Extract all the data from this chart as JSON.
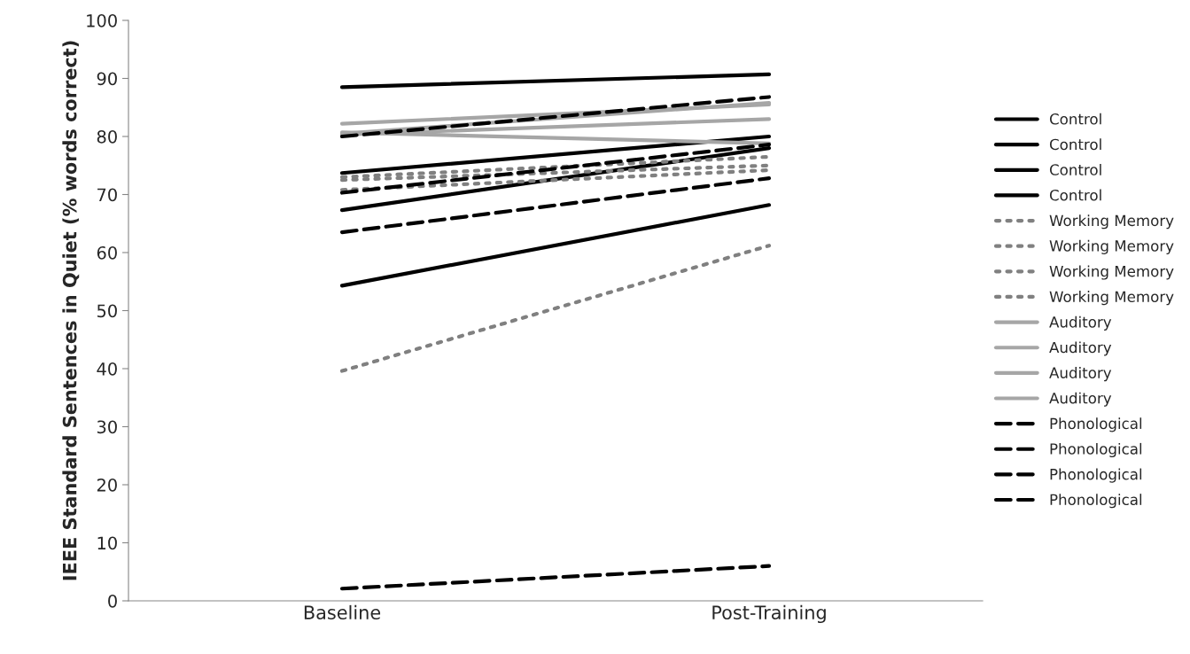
{
  "chart_data": {
    "type": "line",
    "ylabel": "IEEE Standard Sentences in Quiet (% words correct)",
    "categories": [
      "Baseline",
      "Post-Training"
    ],
    "ylim": [
      0,
      100
    ],
    "yticks": [
      0,
      10,
      20,
      30,
      40,
      50,
      60,
      70,
      80,
      90,
      100
    ],
    "grid": false,
    "legend": "right",
    "marker": "none",
    "series": [
      {
        "name": "Control",
        "color": "#000000",
        "line_style": "solid",
        "values": [
          88.5,
          90.7
        ]
      },
      {
        "name": "Control",
        "color": "#000000",
        "line_style": "solid",
        "values": [
          73.7,
          80.0
        ]
      },
      {
        "name": "Control",
        "color": "#000000",
        "line_style": "solid",
        "values": [
          67.3,
          78.0
        ]
      },
      {
        "name": "Control",
        "color": "#000000",
        "line_style": "solid",
        "values": [
          54.3,
          68.2
        ]
      },
      {
        "name": "Working Memory",
        "color": "#808080",
        "line_style": "dotted",
        "values": [
          73.0,
          76.5
        ]
      },
      {
        "name": "Working Memory",
        "color": "#808080",
        "line_style": "dotted",
        "values": [
          72.5,
          75.0
        ]
      },
      {
        "name": "Working Memory",
        "color": "#808080",
        "line_style": "dotted",
        "values": [
          70.8,
          74.2
        ]
      },
      {
        "name": "Working Memory",
        "color": "#808080",
        "line_style": "dotted",
        "values": [
          39.6,
          61.2
        ]
      },
      {
        "name": "Auditory",
        "color": "#a6a6a6",
        "line_style": "solid",
        "values": [
          82.2,
          85.5
        ]
      },
      {
        "name": "Auditory",
        "color": "#a6a6a6",
        "line_style": "solid",
        "values": [
          80.5,
          85.8
        ]
      },
      {
        "name": "Auditory",
        "color": "#a6a6a6",
        "line_style": "solid",
        "values": [
          80.3,
          83.0
        ]
      },
      {
        "name": "Auditory",
        "color": "#a6a6a6",
        "line_style": "solid",
        "values": [
          80.7,
          78.8
        ]
      },
      {
        "name": "Phonological",
        "color": "#000000",
        "line_style": "dashed",
        "values": [
          80.0,
          86.8
        ]
      },
      {
        "name": "Phonological",
        "color": "#000000",
        "line_style": "dashed",
        "values": [
          70.3,
          78.6
        ]
      },
      {
        "name": "Phonological",
        "color": "#000000",
        "line_style": "dashed",
        "values": [
          63.5,
          72.8
        ]
      },
      {
        "name": "Phonological",
        "color": "#000000",
        "line_style": "dashed",
        "values": [
          2.1,
          6.0
        ]
      }
    ]
  }
}
